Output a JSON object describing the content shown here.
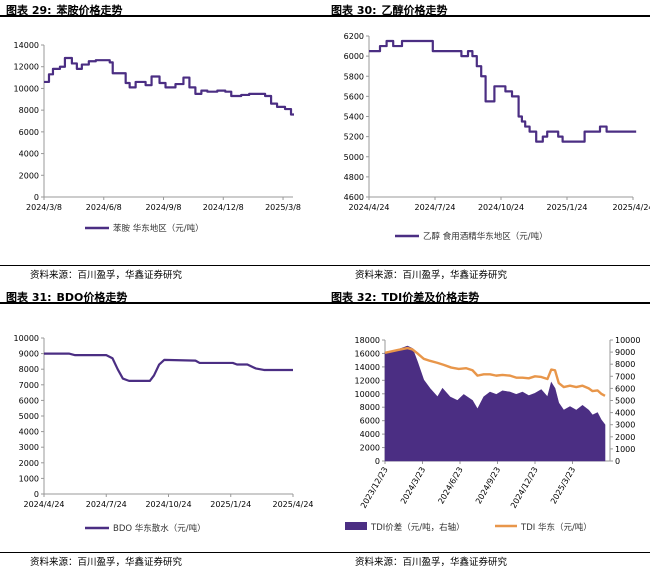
{
  "colors": {
    "purple": "#4B2E83",
    "orange": "#E8964A",
    "axis": "#999999"
  },
  "panels": [
    {
      "number": "图表 29:",
      "title": "苯胺价格走势",
      "source": "资料来源：百川盈孚，华鑫证券研究"
    },
    {
      "number": "图表 30:",
      "title": "乙醇价格走势",
      "source": "资料来源：百川盈孚，华鑫证券研究"
    },
    {
      "number": "图表 31:",
      "title": "BDO价格走势",
      "source": "资料来源：百川盈孚，华鑫证券研究"
    },
    {
      "number": "图表 32:",
      "title": "TDI价差及价格走势",
      "source": "资料来源：百川盈孚，华鑫证券研究"
    }
  ],
  "chart_data": [
    {
      "type": "line",
      "title": "苯胺价格走势",
      "x_range": [
        0,
        12.5
      ],
      "x_ticks": [
        {
          "pos": 0,
          "label": "2024/3/8"
        },
        {
          "pos": 3,
          "label": "2024/6/8"
        },
        {
          "pos": 6,
          "label": "2024/9/8"
        },
        {
          "pos": 9,
          "label": "2024/12/8"
        },
        {
          "pos": 12,
          "label": "2025/3/8"
        }
      ],
      "ylim": [
        0,
        14000
      ],
      "y_ticks": [
        0,
        2000,
        4000,
        6000,
        8000,
        10000,
        12000,
        14000
      ],
      "series": [
        {
          "name": "苯胺  华东地区（元/吨）",
          "color": "#4B2E83",
          "step": true,
          "points": [
            [
              0,
              10600
            ],
            [
              0.25,
              11300
            ],
            [
              0.45,
              11800
            ],
            [
              0.8,
              12000
            ],
            [
              1.05,
              12800
            ],
            [
              1.4,
              12300
            ],
            [
              1.65,
              11800
            ],
            [
              1.9,
              12200
            ],
            [
              2.25,
              12500
            ],
            [
              2.6,
              12600
            ],
            [
              3.3,
              12400
            ],
            [
              3.45,
              11400
            ],
            [
              4.1,
              10500
            ],
            [
              4.3,
              10100
            ],
            [
              4.6,
              10600
            ],
            [
              5.1,
              10300
            ],
            [
              5.4,
              11100
            ],
            [
              5.8,
              10500
            ],
            [
              6.1,
              10100
            ],
            [
              6.6,
              10400
            ],
            [
              7.0,
              11000
            ],
            [
              7.3,
              10100
            ],
            [
              7.6,
              9500
            ],
            [
              7.9,
              9800
            ],
            [
              8.2,
              9700
            ],
            [
              8.7,
              9800
            ],
            [
              9.1,
              9700
            ],
            [
              9.4,
              9300
            ],
            [
              9.9,
              9400
            ],
            [
              10.3,
              9500
            ],
            [
              11.1,
              9300
            ],
            [
              11.4,
              8600
            ],
            [
              11.7,
              8300
            ],
            [
              12.1,
              8100
            ],
            [
              12.4,
              7600
            ]
          ]
        }
      ]
    },
    {
      "type": "line",
      "title": "乙醇价格走势",
      "x_range": [
        0,
        12
      ],
      "x_ticks": [
        {
          "pos": 0,
          "label": "2024/4/24"
        },
        {
          "pos": 3,
          "label": "2024/7/24"
        },
        {
          "pos": 6,
          "label": "2024/10/24"
        },
        {
          "pos": 9,
          "label": "2025/1/24"
        },
        {
          "pos": 12,
          "label": "2025/4/24"
        }
      ],
      "ylim": [
        4600,
        6200
      ],
      "y_ticks": [
        4600,
        4800,
        5000,
        5200,
        5400,
        5600,
        5800,
        6000,
        6200
      ],
      "series": [
        {
          "name": "乙醇  食用酒精华东地区（元/吨）",
          "color": "#4B2E83",
          "step": true,
          "points": [
            [
              0,
              6050
            ],
            [
              0.5,
              6100
            ],
            [
              0.8,
              6150
            ],
            [
              1.1,
              6100
            ],
            [
              1.5,
              6150
            ],
            [
              2.9,
              6050
            ],
            [
              3.5,
              6050
            ],
            [
              4.2,
              6000
            ],
            [
              4.5,
              6050
            ],
            [
              4.7,
              6000
            ],
            [
              4.9,
              5900
            ],
            [
              5.1,
              5800
            ],
            [
              5.3,
              5550
            ],
            [
              5.7,
              5700
            ],
            [
              6.2,
              5650
            ],
            [
              6.5,
              5600
            ],
            [
              6.8,
              5400
            ],
            [
              6.95,
              5350
            ],
            [
              7.1,
              5300
            ],
            [
              7.3,
              5250
            ],
            [
              7.6,
              5150
            ],
            [
              7.9,
              5200
            ],
            [
              8.1,
              5250
            ],
            [
              8.6,
              5200
            ],
            [
              8.8,
              5150
            ],
            [
              9.8,
              5250
            ],
            [
              10.5,
              5300
            ],
            [
              10.8,
              5250
            ],
            [
              12,
              5250
            ]
          ]
        }
      ]
    },
    {
      "type": "line",
      "title": "BDO价格走势",
      "x_range": [
        0,
        12
      ],
      "x_ticks": [
        {
          "pos": 0,
          "label": "2024/4/24"
        },
        {
          "pos": 3,
          "label": "2024/7/24"
        },
        {
          "pos": 6,
          "label": "2024/10/24"
        },
        {
          "pos": 9,
          "label": "2025/1/24"
        },
        {
          "pos": 12,
          "label": "2025/4/24"
        }
      ],
      "ylim": [
        0,
        10000
      ],
      "y_ticks": [
        0,
        1000,
        2000,
        3000,
        4000,
        5000,
        6000,
        7000,
        8000,
        9000,
        10000
      ],
      "series": [
        {
          "name": "BDO  华东散水（元/吨）",
          "color": "#4B2E83",
          "step": false,
          "points": [
            [
              0,
              9000
            ],
            [
              1.2,
              9000
            ],
            [
              1.5,
              8900
            ],
            [
              3.0,
              8900
            ],
            [
              3.3,
              8700
            ],
            [
              3.55,
              8000
            ],
            [
              3.8,
              7400
            ],
            [
              4.1,
              7250
            ],
            [
              5.1,
              7250
            ],
            [
              5.3,
              7600
            ],
            [
              5.55,
              8300
            ],
            [
              5.8,
              8600
            ],
            [
              7.3,
              8550
            ],
            [
              7.5,
              8400
            ],
            [
              9.1,
              8400
            ],
            [
              9.3,
              8300
            ],
            [
              9.8,
              8300
            ],
            [
              10.2,
              8050
            ],
            [
              10.6,
              7950
            ],
            [
              12,
              7950
            ]
          ]
        }
      ]
    },
    {
      "type": "bar+line",
      "title": "TDI价差及价格走势",
      "x_range": [
        0,
        18
      ],
      "x_ticks": [
        {
          "pos": 0,
          "label": "2023/12/23"
        },
        {
          "pos": 3,
          "label": "2024/3/23"
        },
        {
          "pos": 6,
          "label": "2024/6/23"
        },
        {
          "pos": 9,
          "label": "2024/9/23"
        },
        {
          "pos": 12,
          "label": "2024/12/23"
        },
        {
          "pos": 15,
          "label": "2025/3/23"
        }
      ],
      "ylim": [
        0,
        18000
      ],
      "y_ticks": [
        0,
        2000,
        4000,
        6000,
        8000,
        10000,
        12000,
        14000,
        16000,
        18000
      ],
      "ylim_right": [
        0,
        10000
      ],
      "y_ticks_right": [
        0,
        1000,
        2000,
        3000,
        4000,
        5000,
        6000,
        7000,
        8000,
        9000,
        10000
      ],
      "series": [
        {
          "name": "TDI价差（元/吨，右轴）",
          "axis": "right",
          "color": "#4B2E83",
          "points": [
            [
              0,
              9000
            ],
            [
              1,
              9200
            ],
            [
              1.8,
              9500
            ],
            [
              2.2,
              9300
            ],
            [
              2.6,
              8200
            ],
            [
              3.1,
              6700
            ],
            [
              3.6,
              6000
            ],
            [
              4.2,
              5300
            ],
            [
              4.6,
              6000
            ],
            [
              5.2,
              5300
            ],
            [
              5.8,
              5000
            ],
            [
              6.3,
              5500
            ],
            [
              7.0,
              5000
            ],
            [
              7.4,
              4300
            ],
            [
              7.9,
              5300
            ],
            [
              8.4,
              5700
            ],
            [
              8.9,
              5500
            ],
            [
              9.4,
              5800
            ],
            [
              10.0,
              5700
            ],
            [
              10.5,
              5500
            ],
            [
              11.0,
              5700
            ],
            [
              11.5,
              5400
            ],
            [
              12.0,
              5600
            ],
            [
              12.5,
              5900
            ],
            [
              13.0,
              5300
            ],
            [
              13.3,
              6500
            ],
            [
              13.6,
              6000
            ],
            [
              13.9,
              4800
            ],
            [
              14.3,
              4200
            ],
            [
              14.8,
              4500
            ],
            [
              15.3,
              4200
            ],
            [
              15.8,
              4600
            ],
            [
              16.3,
              4200
            ],
            [
              16.6,
              3800
            ],
            [
              17.0,
              4000
            ],
            [
              17.3,
              3400
            ],
            [
              17.6,
              3000
            ]
          ]
        },
        {
          "name": "TDI  华东（元/吨）",
          "axis": "left",
          "color": "#E8964A",
          "points": [
            [
              0,
              16100
            ],
            [
              1,
              16500
            ],
            [
              1.8,
              16800
            ],
            [
              2.2,
              16600
            ],
            [
              2.6,
              16000
            ],
            [
              3.1,
              15200
            ],
            [
              3.6,
              14900
            ],
            [
              4.2,
              14600
            ],
            [
              4.7,
              14300
            ],
            [
              5.3,
              13900
            ],
            [
              5.9,
              13700
            ],
            [
              6.5,
              13800
            ],
            [
              7.0,
              13500
            ],
            [
              7.4,
              12700
            ],
            [
              7.9,
              12900
            ],
            [
              8.4,
              12900
            ],
            [
              8.9,
              12700
            ],
            [
              9.4,
              12800
            ],
            [
              10.0,
              12700
            ],
            [
              10.5,
              12400
            ],
            [
              11.0,
              12400
            ],
            [
              11.5,
              12300
            ],
            [
              12.0,
              12600
            ],
            [
              12.5,
              12500
            ],
            [
              13.0,
              12200
            ],
            [
              13.3,
              13600
            ],
            [
              13.6,
              13500
            ],
            [
              13.9,
              11600
            ],
            [
              14.3,
              11000
            ],
            [
              14.8,
              11200
            ],
            [
              15.3,
              11000
            ],
            [
              15.8,
              11200
            ],
            [
              16.3,
              10800
            ],
            [
              16.6,
              10400
            ],
            [
              17.0,
              10500
            ],
            [
              17.3,
              10000
            ],
            [
              17.6,
              9700
            ]
          ]
        }
      ]
    }
  ]
}
